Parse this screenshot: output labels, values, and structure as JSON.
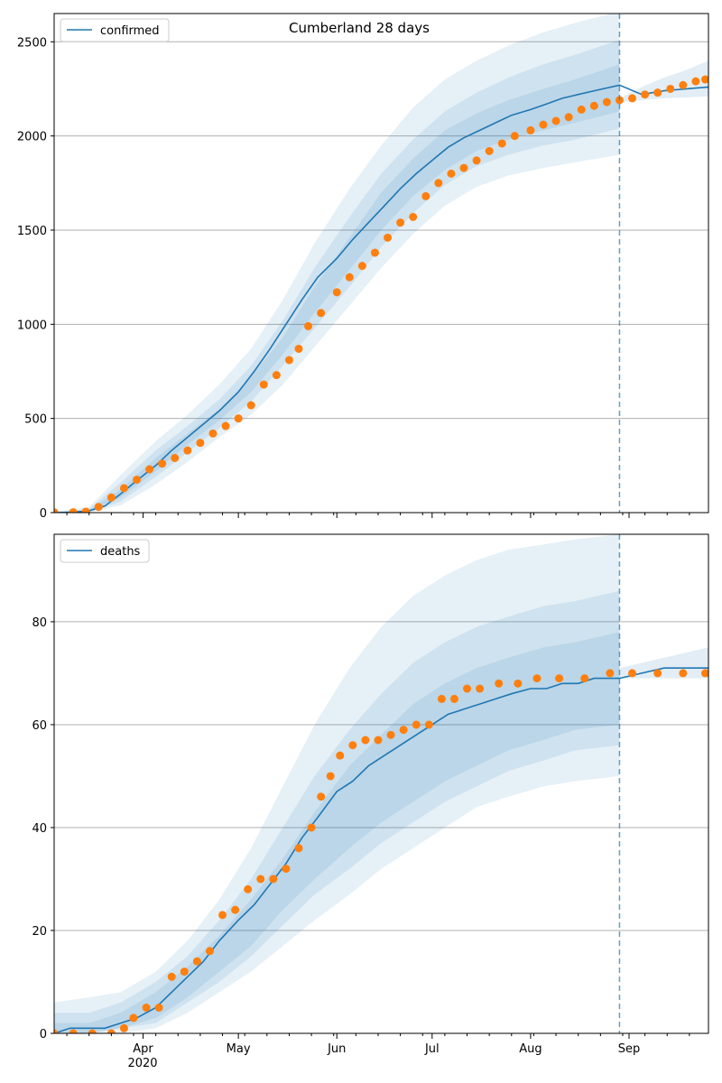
{
  "figure": {
    "title": "Cumberland 28 days",
    "year_label": "2020"
  },
  "chart_data": [
    {
      "type": "line",
      "panel": "top",
      "legend": "confirmed",
      "legend_position": "upper-left",
      "grid": "y",
      "ylim": [
        0,
        2650
      ],
      "yticks": [
        0,
        500,
        1000,
        1500,
        2000,
        2500
      ],
      "xlim": [
        "2020-03-04",
        "2020-09-26"
      ],
      "xticks": [
        {
          "date": "2020-04-01",
          "label": "Apr"
        },
        {
          "date": "2020-05-01",
          "label": "May"
        },
        {
          "date": "2020-06-01",
          "label": "Jun"
        },
        {
          "date": "2020-07-01",
          "label": "Jul"
        },
        {
          "date": "2020-08-01",
          "label": "Aug"
        },
        {
          "date": "2020-09-01",
          "label": "Sep"
        }
      ],
      "forecast_start": "2020-08-29",
      "colors": {
        "model": "#1f77b4",
        "observed": "#ff7f0e"
      },
      "model_line": {
        "x": [
          "2020-03-04",
          "2020-03-10",
          "2020-03-15",
          "2020-03-20",
          "2020-03-25",
          "2020-03-30",
          "2020-04-05",
          "2020-04-10",
          "2020-04-15",
          "2020-04-20",
          "2020-04-25",
          "2020-05-01",
          "2020-05-06",
          "2020-05-11",
          "2020-05-16",
          "2020-05-21",
          "2020-05-26",
          "2020-06-01",
          "2020-06-06",
          "2020-06-11",
          "2020-06-16",
          "2020-06-21",
          "2020-06-26",
          "2020-07-01",
          "2020-07-06",
          "2020-07-11",
          "2020-07-16",
          "2020-07-21",
          "2020-07-26",
          "2020-08-01",
          "2020-08-06",
          "2020-08-11",
          "2020-08-16",
          "2020-08-21",
          "2020-08-29",
          "2020-09-05",
          "2020-09-12",
          "2020-09-19",
          "2020-09-26"
        ],
        "y": [
          0,
          2,
          10,
          35,
          100,
          170,
          250,
          330,
          400,
          470,
          540,
          640,
          750,
          870,
          1000,
          1130,
          1250,
          1350,
          1450,
          1540,
          1630,
          1720,
          1800,
          1870,
          1940,
          1990,
          2030,
          2070,
          2110,
          2140,
          2170,
          2200,
          2220,
          2240,
          2270,
          2220,
          2240,
          2250,
          2260
        ]
      },
      "band_outer": {
        "x": [
          "2020-03-04",
          "2020-03-15",
          "2020-03-25",
          "2020-04-05",
          "2020-04-15",
          "2020-04-25",
          "2020-05-05",
          "2020-05-15",
          "2020-05-25",
          "2020-06-05",
          "2020-06-15",
          "2020-06-25",
          "2020-07-05",
          "2020-07-15",
          "2020-07-25",
          "2020-08-05",
          "2020-08-15",
          "2020-08-29"
        ],
        "upper": [
          5,
          30,
          200,
          380,
          520,
          680,
          870,
          1130,
          1430,
          1720,
          1950,
          2150,
          2300,
          2400,
          2480,
          2550,
          2600,
          2660
        ],
        "lower": [
          0,
          0,
          40,
          150,
          270,
          400,
          520,
          680,
          880,
          1100,
          1300,
          1480,
          1630,
          1730,
          1790,
          1830,
          1860,
          1900
        ]
      },
      "band_mid": {
        "x": [
          "2020-03-04",
          "2020-03-15",
          "2020-03-25",
          "2020-04-05",
          "2020-04-15",
          "2020-04-25",
          "2020-05-05",
          "2020-05-15",
          "2020-05-25",
          "2020-06-05",
          "2020-06-15",
          "2020-06-25",
          "2020-07-05",
          "2020-07-15",
          "2020-07-25",
          "2020-08-05",
          "2020-08-15",
          "2020-08-29"
        ],
        "upper": [
          3,
          20,
          160,
          330,
          460,
          600,
          780,
          1020,
          1300,
          1570,
          1800,
          1980,
          2130,
          2230,
          2310,
          2380,
          2430,
          2510
        ],
        "lower": [
          0,
          2,
          60,
          190,
          320,
          450,
          590,
          780,
          980,
          1200,
          1410,
          1590,
          1740,
          1840,
          1900,
          1950,
          1980,
          2040
        ]
      },
      "band_inner": {
        "x": [
          "2020-03-04",
          "2020-03-15",
          "2020-03-25",
          "2020-04-05",
          "2020-04-15",
          "2020-04-25",
          "2020-05-05",
          "2020-05-15",
          "2020-05-25",
          "2020-06-05",
          "2020-06-15",
          "2020-06-25",
          "2020-07-05",
          "2020-07-15",
          "2020-07-25",
          "2020-08-05",
          "2020-08-15",
          "2020-08-29"
        ],
        "upper": [
          2,
          14,
          125,
          290,
          420,
          550,
          720,
          930,
          1200,
          1460,
          1700,
          1880,
          2030,
          2120,
          2190,
          2250,
          2300,
          2380
        ],
        "lower": [
          0,
          5,
          80,
          220,
          360,
          490,
          640,
          840,
          1060,
          1290,
          1500,
          1680,
          1820,
          1920,
          1980,
          2030,
          2070,
          2130
        ]
      },
      "forecast_band": {
        "x": [
          "2020-08-29",
          "2020-09-05",
          "2020-09-12",
          "2020-09-19",
          "2020-09-26"
        ],
        "upper": [
          2200,
          2260,
          2310,
          2350,
          2400
        ],
        "lower": [
          2180,
          2190,
          2200,
          2205,
          2210
        ]
      },
      "observed": {
        "x": [
          "2020-03-04",
          "2020-03-10",
          "2020-03-14",
          "2020-03-18",
          "2020-03-22",
          "2020-03-26",
          "2020-03-30",
          "2020-04-03",
          "2020-04-07",
          "2020-04-11",
          "2020-04-15",
          "2020-04-19",
          "2020-04-23",
          "2020-04-27",
          "2020-05-01",
          "2020-05-05",
          "2020-05-09",
          "2020-05-13",
          "2020-05-17",
          "2020-05-20",
          "2020-05-23",
          "2020-05-27",
          "2020-06-01",
          "2020-06-05",
          "2020-06-09",
          "2020-06-13",
          "2020-06-17",
          "2020-06-21",
          "2020-06-25",
          "2020-06-29",
          "2020-07-03",
          "2020-07-07",
          "2020-07-11",
          "2020-07-15",
          "2020-07-19",
          "2020-07-23",
          "2020-07-27",
          "2020-08-01",
          "2020-08-05",
          "2020-08-09",
          "2020-08-13",
          "2020-08-17",
          "2020-08-21",
          "2020-08-25",
          "2020-08-29",
          "2020-09-02",
          "2020-09-06",
          "2020-09-10",
          "2020-09-14",
          "2020-09-18",
          "2020-09-22",
          "2020-09-25"
        ],
        "y": [
          2,
          2,
          5,
          30,
          80,
          130,
          175,
          230,
          260,
          290,
          330,
          370,
          420,
          460,
          500,
          570,
          680,
          730,
          810,
          870,
          990,
          1060,
          1170,
          1250,
          1310,
          1380,
          1460,
          1540,
          1570,
          1680,
          1750,
          1800,
          1830,
          1870,
          1920,
          1960,
          2000,
          2030,
          2060,
          2080,
          2100,
          2140,
          2160,
          2180,
          2190,
          2200,
          2220,
          2230,
          2250,
          2270,
          2290,
          2300
        ]
      }
    },
    {
      "type": "line",
      "panel": "bottom",
      "legend": "deaths",
      "legend_position": "upper-left",
      "grid": "y",
      "ylim": [
        0,
        97
      ],
      "yticks": [
        0,
        20,
        40,
        60,
        80
      ],
      "xlim": [
        "2020-03-04",
        "2020-09-26"
      ],
      "xticks": [
        {
          "date": "2020-04-01",
          "label": "Apr"
        },
        {
          "date": "2020-05-01",
          "label": "May"
        },
        {
          "date": "2020-06-01",
          "label": "Jun"
        },
        {
          "date": "2020-07-01",
          "label": "Jul"
        },
        {
          "date": "2020-08-01",
          "label": "Aug"
        },
        {
          "date": "2020-09-01",
          "label": "Sep"
        }
      ],
      "forecast_start": "2020-08-29",
      "colors": {
        "model": "#1f77b4",
        "observed": "#ff7f0e"
      },
      "model_line": {
        "x": [
          "2020-03-04",
          "2020-03-09",
          "2020-03-20",
          "2020-03-25",
          "2020-03-30",
          "2020-04-05",
          "2020-04-10",
          "2020-04-15",
          "2020-04-20",
          "2020-04-25",
          "2020-05-01",
          "2020-05-06",
          "2020-05-11",
          "2020-05-16",
          "2020-05-21",
          "2020-05-26",
          "2020-06-01",
          "2020-06-06",
          "2020-06-11",
          "2020-06-16",
          "2020-06-21",
          "2020-06-26",
          "2020-07-01",
          "2020-07-06",
          "2020-07-11",
          "2020-07-16",
          "2020-07-21",
          "2020-07-26",
          "2020-08-01",
          "2020-08-06",
          "2020-08-11",
          "2020-08-16",
          "2020-08-21",
          "2020-08-29",
          "2020-09-05",
          "2020-09-12",
          "2020-09-19",
          "2020-09-26"
        ],
        "y": [
          0,
          1,
          1,
          2,
          3,
          5,
          8,
          11,
          14,
          18,
          22,
          25,
          29,
          33,
          38,
          42,
          47,
          49,
          52,
          54,
          56,
          58,
          60,
          62,
          63,
          64,
          65,
          66,
          67,
          67,
          68,
          68,
          69,
          69,
          70,
          71,
          71,
          71
        ]
      },
      "band_outer": {
        "x": [
          "2020-03-04",
          "2020-03-15",
          "2020-03-25",
          "2020-04-05",
          "2020-04-15",
          "2020-04-25",
          "2020-05-05",
          "2020-05-15",
          "2020-05-25",
          "2020-06-05",
          "2020-06-15",
          "2020-06-25",
          "2020-07-05",
          "2020-07-15",
          "2020-07-25",
          "2020-08-05",
          "2020-08-15",
          "2020-08-29"
        ],
        "upper": [
          6,
          7,
          8,
          12,
          18,
          26,
          36,
          48,
          60,
          71,
          79,
          85,
          89,
          92,
          94,
          95,
          96,
          97
        ],
        "lower": [
          0,
          0,
          0,
          1,
          4,
          8,
          12,
          17,
          22,
          27,
          32,
          36,
          40,
          44,
          46,
          48,
          49,
          50
        ]
      },
      "band_mid": {
        "x": [
          "2020-03-04",
          "2020-03-15",
          "2020-03-25",
          "2020-04-05",
          "2020-04-15",
          "2020-04-25",
          "2020-05-05",
          "2020-05-15",
          "2020-05-25",
          "2020-06-05",
          "2020-06-15",
          "2020-06-25",
          "2020-07-05",
          "2020-07-15",
          "2020-07-25",
          "2020-08-05",
          "2020-08-15",
          "2020-08-29"
        ],
        "upper": [
          4,
          4,
          6,
          10,
          15,
          22,
          30,
          40,
          50,
          59,
          66,
          72,
          76,
          79,
          81,
          83,
          84,
          86
        ],
        "lower": [
          0,
          0,
          1,
          2,
          6,
          10,
          15,
          21,
          27,
          32,
          37,
          41,
          45,
          48,
          51,
          53,
          55,
          56
        ]
      },
      "band_inner": {
        "x": [
          "2020-03-04",
          "2020-03-15",
          "2020-03-25",
          "2020-04-05",
          "2020-04-15",
          "2020-04-25",
          "2020-05-05",
          "2020-05-15",
          "2020-05-25",
          "2020-06-05",
          "2020-06-15",
          "2020-06-25",
          "2020-07-05",
          "2020-07-15",
          "2020-07-25",
          "2020-08-05",
          "2020-08-15",
          "2020-08-29"
        ],
        "upper": [
          2,
          2,
          4,
          8,
          13,
          19,
          26,
          34,
          43,
          52,
          58,
          64,
          68,
          71,
          73,
          75,
          76,
          78
        ],
        "lower": [
          0,
          0,
          1,
          3,
          7,
          12,
          17,
          24,
          30,
          36,
          41,
          45,
          49,
          52,
          55,
          57,
          59,
          60
        ]
      },
      "forecast_band": {
        "x": [
          "2020-08-29",
          "2020-09-05",
          "2020-09-12",
          "2020-09-19",
          "2020-09-26"
        ],
        "upper": [
          71,
          72,
          73,
          74,
          75
        ],
        "lower": [
          69,
          69,
          69,
          69,
          69
        ]
      },
      "observed": {
        "x": [
          "2020-03-04",
          "2020-03-10",
          "2020-03-16",
          "2020-03-22",
          "2020-03-26",
          "2020-03-29",
          "2020-04-02",
          "2020-04-06",
          "2020-04-10",
          "2020-04-14",
          "2020-04-18",
          "2020-04-22",
          "2020-04-26",
          "2020-04-30",
          "2020-05-04",
          "2020-05-08",
          "2020-05-12",
          "2020-05-16",
          "2020-05-20",
          "2020-05-24",
          "2020-05-27",
          "2020-05-30",
          "2020-06-02",
          "2020-06-06",
          "2020-06-10",
          "2020-06-14",
          "2020-06-18",
          "2020-06-22",
          "2020-06-26",
          "2020-06-30",
          "2020-07-04",
          "2020-07-08",
          "2020-07-12",
          "2020-07-16",
          "2020-07-22",
          "2020-07-28",
          "2020-08-03",
          "2020-08-10",
          "2020-08-18",
          "2020-08-26",
          "2020-09-02",
          "2020-09-10",
          "2020-09-18",
          "2020-09-25"
        ],
        "y": [
          0,
          0,
          0,
          0,
          1,
          3,
          5,
          5,
          11,
          12,
          14,
          16,
          23,
          24,
          28,
          30,
          30,
          32,
          36,
          40,
          46,
          50,
          54,
          56,
          57,
          57,
          58,
          59,
          60,
          60,
          65,
          65,
          67,
          67,
          68,
          68,
          69,
          69,
          69,
          70,
          70,
          70,
          70,
          70
        ]
      }
    }
  ]
}
